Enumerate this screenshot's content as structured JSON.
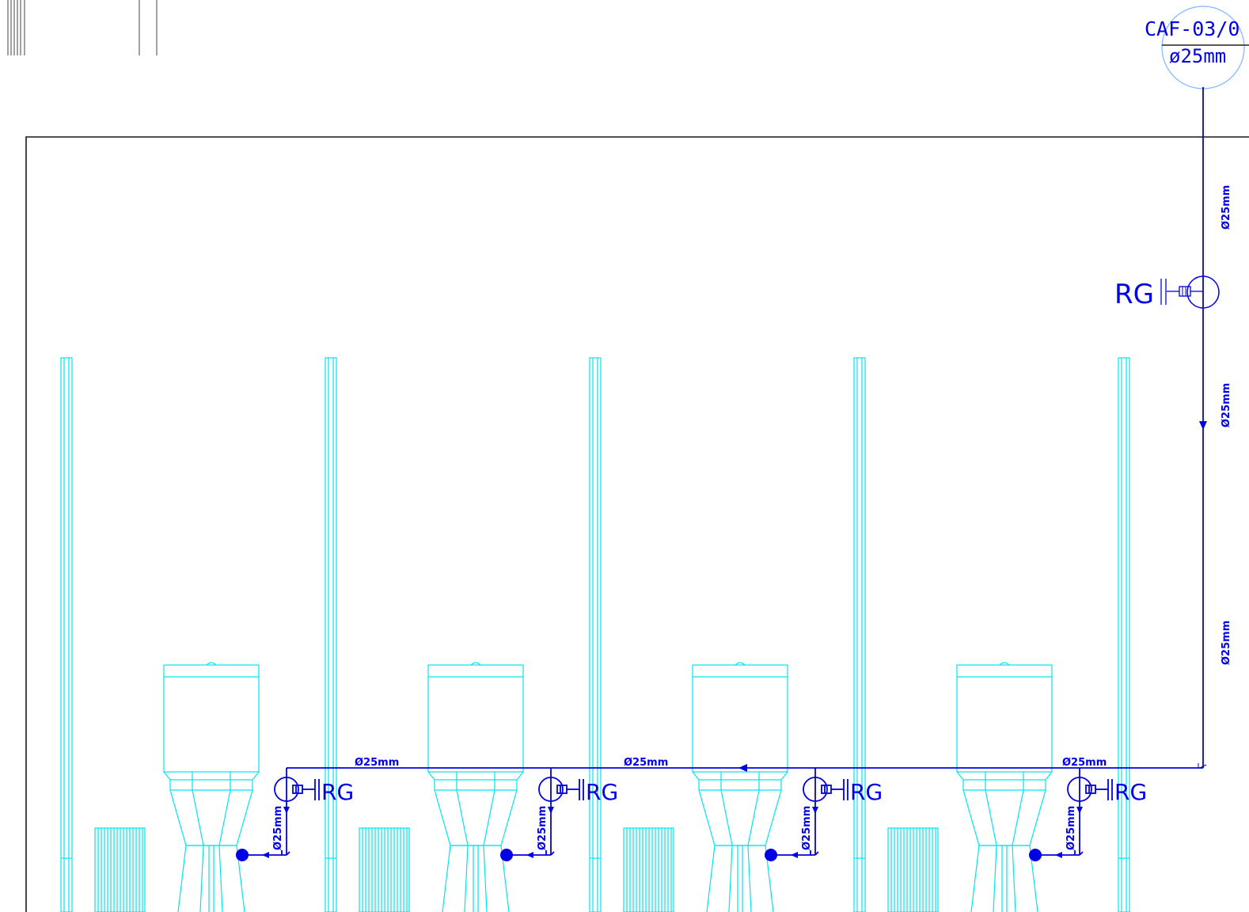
{
  "colors": {
    "fixture_lines": "#00e5ee",
    "pipe": "#0000e6",
    "frame": "#1a1a1a",
    "background": "#ffffff"
  },
  "riser": {
    "tag": "CAF-03/0",
    "tag_diameter": "ø25mm",
    "vertical_labels": [
      "Ø25mm",
      "Ø25mm",
      "Ø25mm"
    ],
    "register_label": "RG"
  },
  "branch": {
    "labels": [
      "Ø25mm",
      "Ø25mm",
      "Ø25mm"
    ]
  },
  "fixtures": [
    {
      "register_label": "RG",
      "drop_label": "Ø25mm"
    },
    {
      "register_label": "RG",
      "drop_label": "Ø25mm"
    },
    {
      "register_label": "RG",
      "drop_label": "Ø25mm"
    },
    {
      "register_label": "RG",
      "drop_label": "Ø25mm"
    }
  ]
}
